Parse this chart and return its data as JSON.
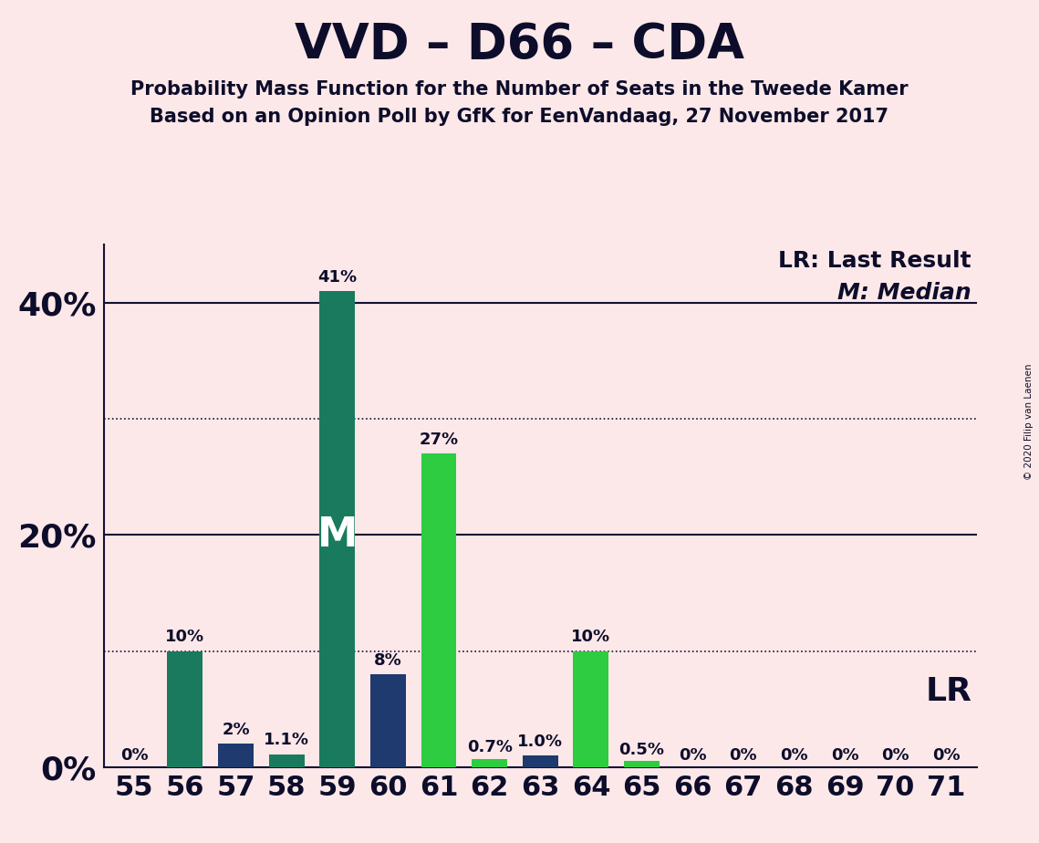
{
  "title": "VVD – D66 – CDA",
  "subtitle1": "Probability Mass Function for the Number of Seats in the Tweede Kamer",
  "subtitle2": "Based on an Opinion Poll by GfK for EenVandaag, 27 November 2017",
  "copyright": "© 2020 Filip van Laenen",
  "seats": [
    55,
    56,
    57,
    58,
    59,
    60,
    61,
    62,
    63,
    64,
    65,
    66,
    67,
    68,
    69,
    70,
    71
  ],
  "values": [
    0.0,
    10.0,
    2.0,
    1.1,
    41.0,
    8.0,
    27.0,
    0.7,
    1.0,
    10.0,
    0.5,
    0.0,
    0.0,
    0.0,
    0.0,
    0.0,
    0.0
  ],
  "labels": [
    "0%",
    "10%",
    "2%",
    "1.1%",
    "41%",
    "8%",
    "27%",
    "0.7%",
    "1.0%",
    "10%",
    "0.5%",
    "0%",
    "0%",
    "0%",
    "0%",
    "0%",
    "0%"
  ],
  "bg_color": "#fce8e8",
  "color_teal": "#1a7a5e",
  "color_navy": "#1e3a6e",
  "color_green": "#2ecc40",
  "bar_color_indices": [
    0,
    0,
    1,
    0,
    0,
    1,
    2,
    2,
    1,
    2,
    2,
    2,
    2,
    2,
    2,
    2,
    2
  ],
  "median_idx": 4,
  "solid_lines": [
    20,
    40
  ],
  "dotted_lines": [
    10,
    30
  ],
  "ylim_max": 45,
  "bar_width": 0.7,
  "title_fontsize": 38,
  "subtitle_fontsize": 15,
  "ytick_fontsize": 26,
  "xtick_fontsize": 22,
  "label_fontsize": 13,
  "M_fontsize": 32,
  "legend_fontsize": 18,
  "LR_fontsize": 26
}
